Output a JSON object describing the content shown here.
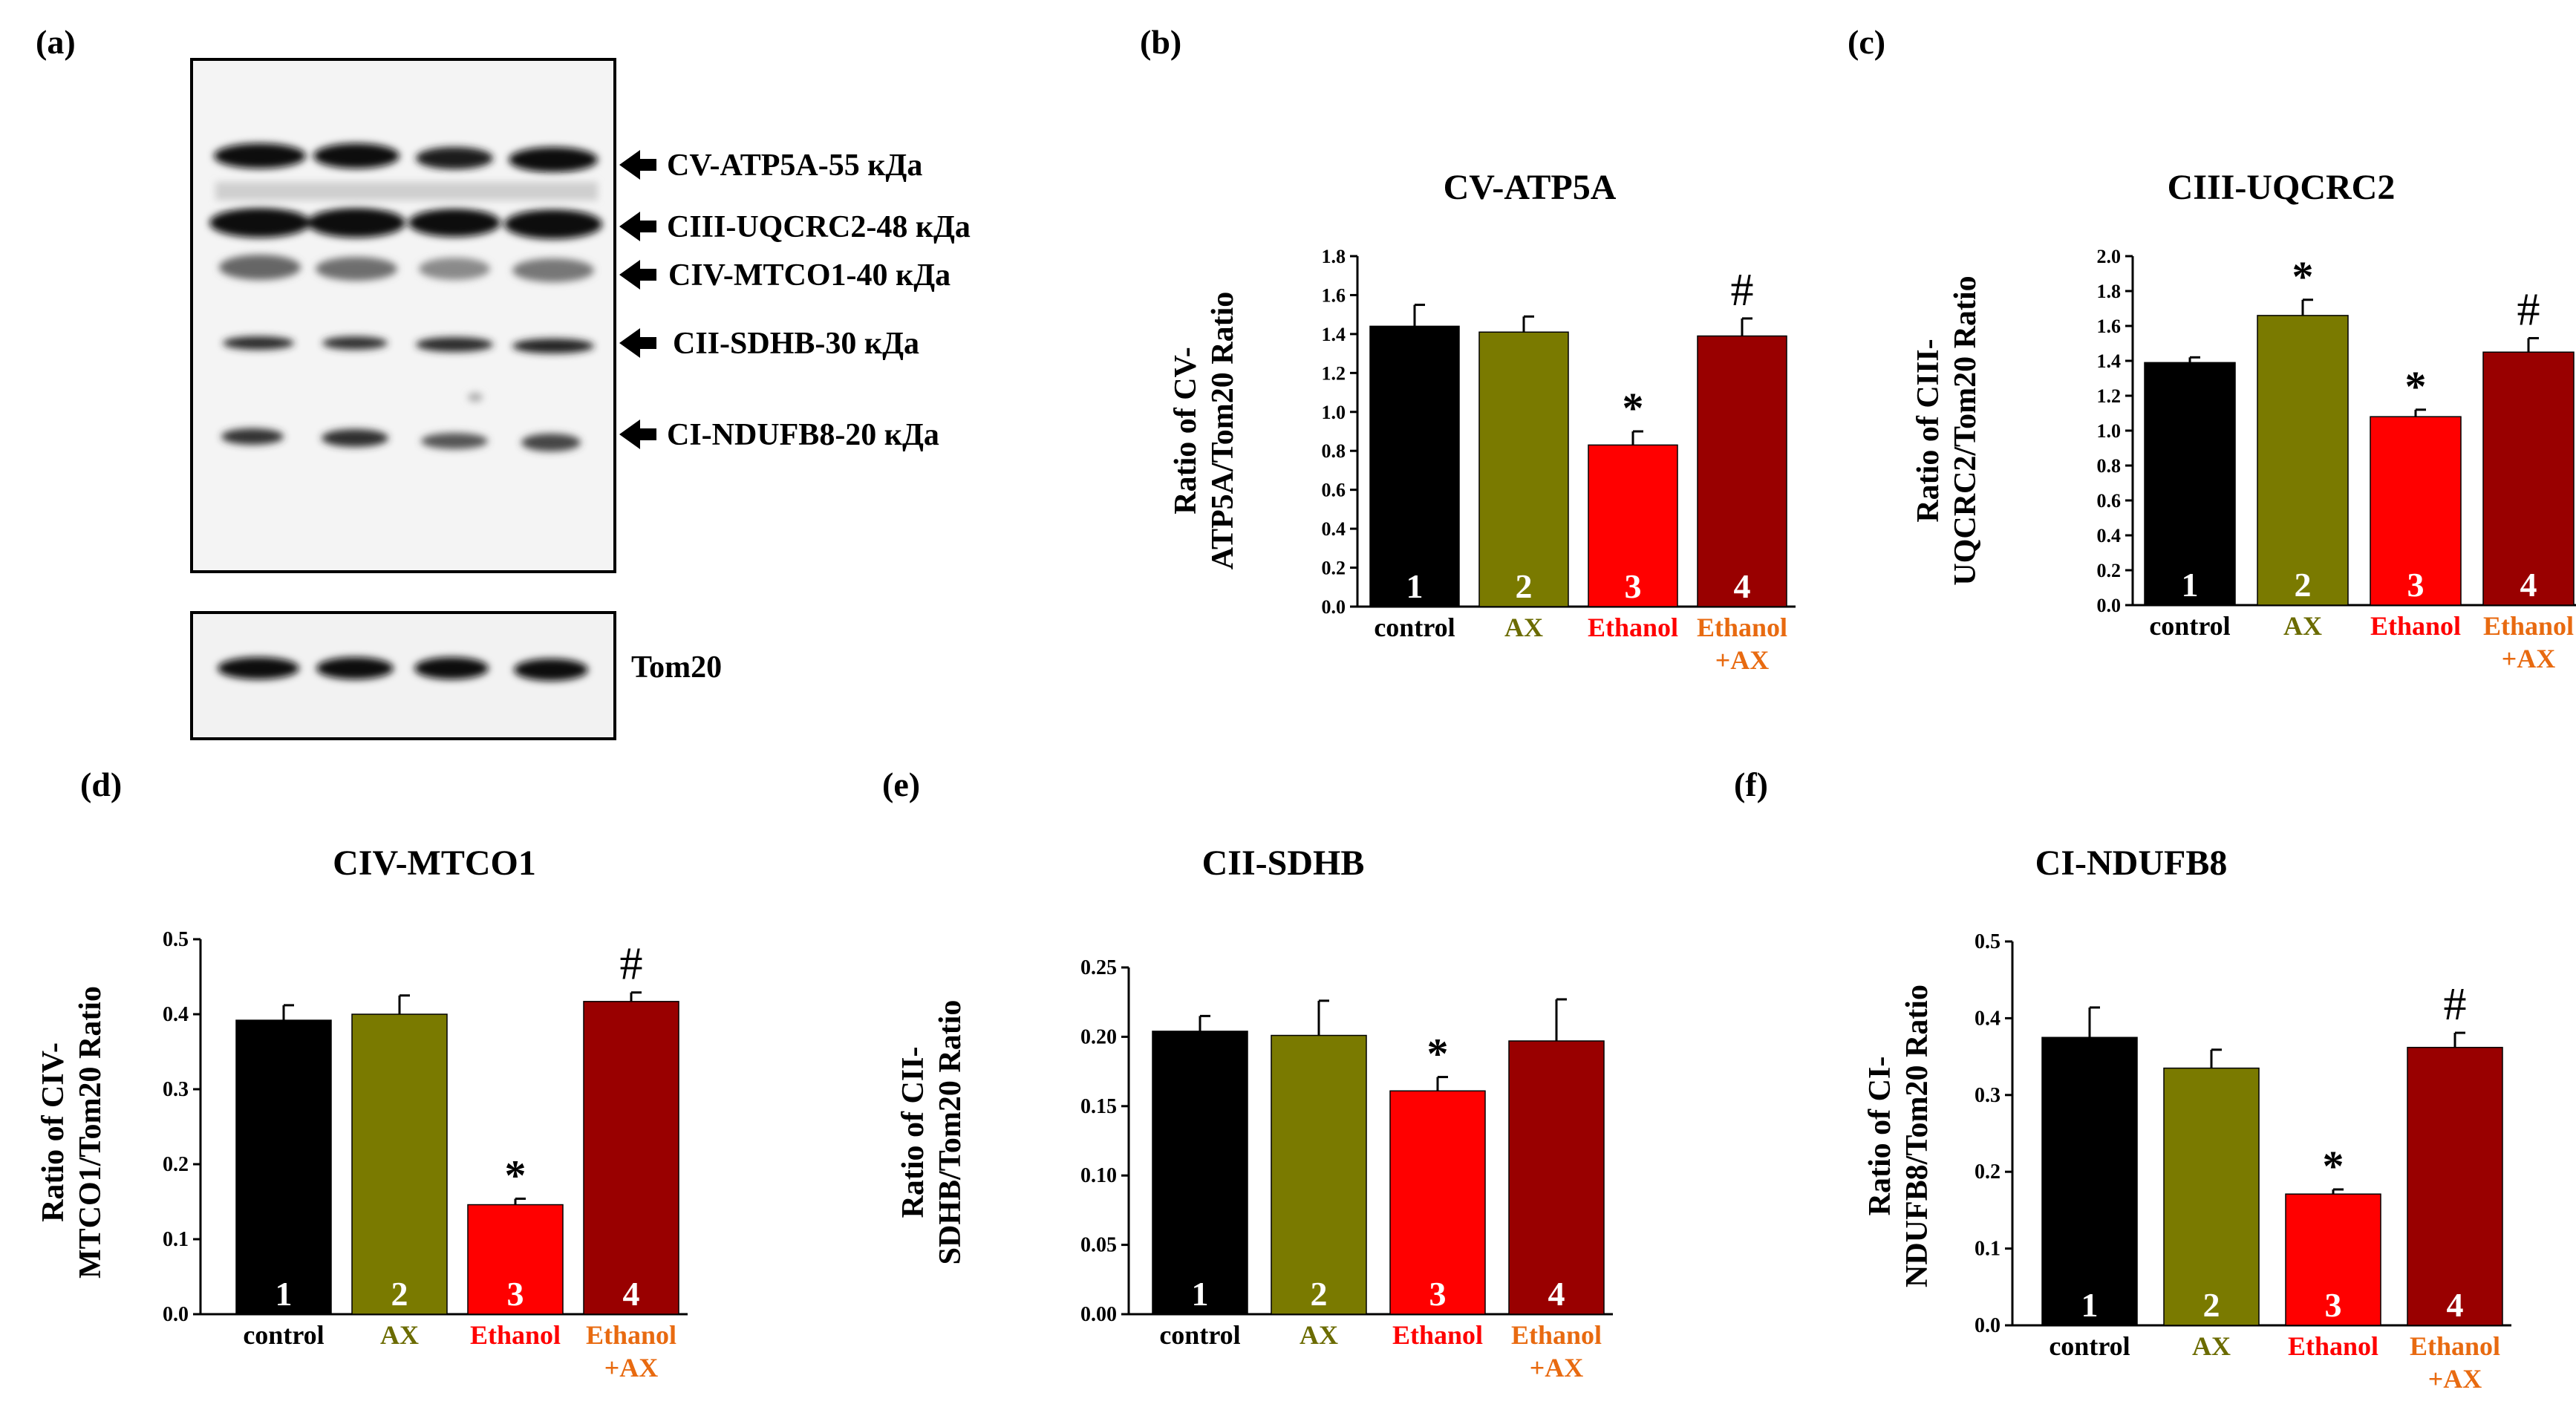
{
  "panel_labels": [
    "(a)",
    "(b)",
    "(c)",
    "(d)",
    "(e)",
    "(f)"
  ],
  "blot": {
    "bands": [
      {
        "label": "CV-ATP5A-55 кДа"
      },
      {
        "label": "CIII-UQCRC2-48 кДа"
      },
      {
        "label": "CIV-MTCO1-40 кДа"
      },
      {
        "label": "CII-SDHB-30 кДа"
      },
      {
        "label": "CI-NDUFB8-20 кДа"
      }
    ],
    "loading_label": "Tom20",
    "lanes": 4
  },
  "groups": [
    {
      "number": "1",
      "name": "control",
      "name2": "",
      "bar_color": "#000000",
      "text_color": "#000000"
    },
    {
      "number": "2",
      "name": "AX",
      "name2": "",
      "bar_color": "#7a7a00",
      "text_color": "#6b6b00"
    },
    {
      "number": "3",
      "name": "Ethanol",
      "name2": "",
      "bar_color": "#ff0000",
      "text_color": "#ff0000"
    },
    {
      "number": "4",
      "name": "Ethanol",
      "name2": "+AX",
      "bar_color": "#990000",
      "text_color": "#e86a10"
    }
  ],
  "chart_data": [
    {
      "id": "b",
      "type": "bar",
      "title": "CV-ATP5A",
      "ylabel_lines": [
        "Ratio of CV-",
        "ATP5A/Tom20 Ratio"
      ],
      "ylim": [
        0,
        1.8
      ],
      "yticks": [
        0.0,
        0.2,
        0.4,
        0.6,
        0.8,
        1.0,
        1.2,
        1.4,
        1.6,
        1.8
      ],
      "tick_decimals": 1,
      "categories": [
        "control",
        "AX",
        "Ethanol",
        "Ethanol +AX"
      ],
      "values": [
        1.44,
        1.41,
        0.83,
        1.39
      ],
      "errors": [
        0.11,
        0.08,
        0.07,
        0.09
      ],
      "annotations": [
        "",
        "",
        "*",
        "#"
      ]
    },
    {
      "id": "c",
      "type": "bar",
      "title": "CIII-UQCRC2",
      "ylabel_lines": [
        "Ratio of CIII-",
        "UQCRC2/Tom20 Ratio"
      ],
      "ylim": [
        0,
        2.0
      ],
      "yticks": [
        0.0,
        0.2,
        0.4,
        0.6,
        0.8,
        1.0,
        1.2,
        1.4,
        1.6,
        1.8,
        2.0
      ],
      "tick_decimals": 1,
      "categories": [
        "control",
        "AX",
        "Ethanol",
        "Ethanol +AX"
      ],
      "values": [
        1.39,
        1.66,
        1.08,
        1.45
      ],
      "errors": [
        0.03,
        0.09,
        0.04,
        0.08
      ],
      "annotations": [
        "",
        "*",
        "*",
        "#"
      ]
    },
    {
      "id": "d",
      "type": "bar",
      "title": "CIV-MTCO1",
      "ylabel_lines": [
        "Ratio of CIV-",
        "MTCO1/Tom20 Ratio"
      ],
      "ylim": [
        0,
        0.5
      ],
      "yticks": [
        0.0,
        0.1,
        0.2,
        0.3,
        0.4,
        0.5
      ],
      "tick_decimals": 1,
      "categories": [
        "control",
        "AX",
        "Ethanol",
        "Ethanol +AX"
      ],
      "values": [
        0.392,
        0.4,
        0.146,
        0.417
      ],
      "errors": [
        0.02,
        0.025,
        0.008,
        0.012
      ],
      "annotations": [
        "",
        "",
        "*",
        "#"
      ]
    },
    {
      "id": "e",
      "type": "bar",
      "title": "CII-SDHB",
      "ylabel_lines": [
        "Ratio of CII-",
        "SDHB/Tom20 Ratio"
      ],
      "ylim": [
        0,
        0.25
      ],
      "yticks": [
        0.0,
        0.05,
        0.1,
        0.15,
        0.2,
        0.25
      ],
      "tick_decimals": 2,
      "categories": [
        "control",
        "AX",
        "Ethanol",
        "Ethanol +AX"
      ],
      "values": [
        0.204,
        0.201,
        0.161,
        0.197
      ],
      "errors": [
        0.011,
        0.025,
        0.01,
        0.03
      ],
      "annotations": [
        "",
        "",
        "*",
        ""
      ]
    },
    {
      "id": "f",
      "type": "bar",
      "title": "CI-NDUFB8",
      "ylabel_lines": [
        "Ratio of CI-",
        "NDUFB8/Tom20 Ratio"
      ],
      "ylim": [
        0,
        0.5
      ],
      "yticks": [
        0.0,
        0.1,
        0.2,
        0.3,
        0.4,
        0.5
      ],
      "tick_decimals": 1,
      "categories": [
        "control",
        "AX",
        "Ethanol",
        "Ethanol +AX"
      ],
      "values": [
        0.375,
        0.335,
        0.171,
        0.362
      ],
      "errors": [
        0.039,
        0.024,
        0.006,
        0.019
      ],
      "annotations": [
        "",
        "",
        "*",
        "#"
      ]
    }
  ]
}
